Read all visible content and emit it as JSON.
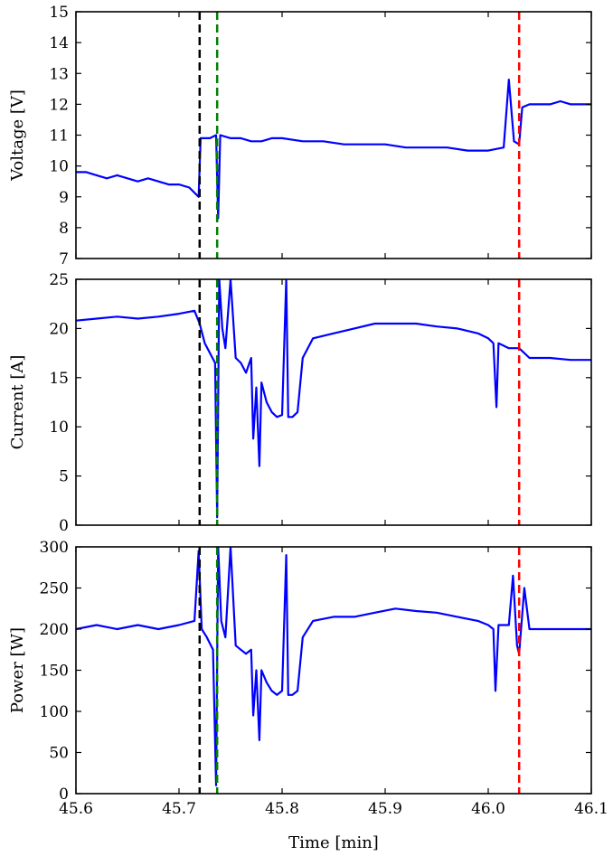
{
  "chart_data": [
    {
      "type": "line",
      "ylabel": "Voltage [V]",
      "xlim": [
        45.6,
        46.1
      ],
      "ylim": [
        7,
        15
      ],
      "yticks": [
        7,
        8,
        9,
        10,
        11,
        12,
        13,
        14,
        15
      ],
      "xtick_labels_visible": false,
      "series": [
        {
          "color": "#0000ff",
          "x": [
            45.6,
            45.61,
            45.62,
            45.63,
            45.64,
            45.65,
            45.66,
            45.67,
            45.68,
            45.69,
            45.7,
            45.71,
            45.719,
            45.721,
            45.73,
            45.736,
            45.738,
            45.74,
            45.75,
            45.76,
            45.77,
            45.78,
            45.79,
            45.8,
            45.82,
            45.84,
            45.86,
            45.88,
            45.9,
            45.92,
            45.94,
            45.96,
            45.98,
            46.0,
            46.015,
            46.02,
            46.025,
            46.03,
            46.033,
            46.04,
            46.05,
            46.06,
            46.07,
            46.08,
            46.09,
            46.1
          ],
          "y": [
            9.8,
            9.8,
            9.7,
            9.6,
            9.7,
            9.6,
            9.5,
            9.6,
            9.5,
            9.4,
            9.4,
            9.3,
            9.0,
            10.9,
            10.9,
            11.0,
            8.3,
            11.0,
            10.9,
            10.9,
            10.8,
            10.8,
            10.9,
            10.9,
            10.8,
            10.8,
            10.7,
            10.7,
            10.7,
            10.6,
            10.6,
            10.6,
            10.5,
            10.5,
            10.6,
            12.8,
            10.8,
            10.7,
            11.9,
            12.0,
            12.0,
            12.0,
            12.1,
            12.0,
            12.0,
            12.0
          ]
        }
      ],
      "vlines": [
        {
          "x": 45.72,
          "color": "#000000",
          "style": "dashed"
        },
        {
          "x": 45.737,
          "color": "#008000",
          "style": "dashed"
        },
        {
          "x": 46.03,
          "color": "#ff0000",
          "style": "dashed"
        }
      ],
      "grid": false
    },
    {
      "type": "line",
      "ylabel": "Current [A]",
      "xlim": [
        45.6,
        46.1
      ],
      "ylim": [
        0,
        25
      ],
      "yticks": [
        0,
        5,
        10,
        15,
        20,
        25
      ],
      "xtick_labels_visible": false,
      "series": [
        {
          "color": "#0000ff",
          "x": [
            45.6,
            45.62,
            45.64,
            45.66,
            45.68,
            45.7,
            45.715,
            45.72,
            45.725,
            45.73,
            45.735,
            45.737,
            45.739,
            45.742,
            45.745,
            45.75,
            45.755,
            45.76,
            45.765,
            45.77,
            45.772,
            45.775,
            45.778,
            45.78,
            45.785,
            45.79,
            45.795,
            45.8,
            45.804,
            45.806,
            45.81,
            45.815,
            45.82,
            45.83,
            45.85,
            45.87,
            45.89,
            45.91,
            45.93,
            45.95,
            45.97,
            45.99,
            46.0,
            46.005,
            46.008,
            46.01,
            46.02,
            46.03,
            46.035,
            46.04,
            46.06,
            46.08,
            46.1
          ],
          "y": [
            20.8,
            21.0,
            21.2,
            21.0,
            21.2,
            21.5,
            21.8,
            20.5,
            18.5,
            17.5,
            16.5,
            0.8,
            25.0,
            20.0,
            18.0,
            25.0,
            17.0,
            16.5,
            15.5,
            17.0,
            8.8,
            14.0,
            6.0,
            14.5,
            12.5,
            11.5,
            11.0,
            11.2,
            25.0,
            11.0,
            11.0,
            11.5,
            17.0,
            19.0,
            19.5,
            20.0,
            20.5,
            20.5,
            20.5,
            20.2,
            20.0,
            19.5,
            19.0,
            18.5,
            12.0,
            18.5,
            18.0,
            18.0,
            17.5,
            17.0,
            17.0,
            16.8,
            16.8
          ]
        }
      ],
      "vlines": [
        {
          "x": 45.72,
          "color": "#000000",
          "style": "dashed"
        },
        {
          "x": 45.737,
          "color": "#008000",
          "style": "dashed"
        },
        {
          "x": 46.03,
          "color": "#ff0000",
          "style": "dashed"
        }
      ],
      "grid": false
    },
    {
      "type": "line",
      "xlabel": "Time [min]",
      "ylabel": "Power [W]",
      "xlim": [
        45.6,
        46.1
      ],
      "ylim": [
        0,
        300
      ],
      "xticks": [
        45.6,
        45.7,
        45.8,
        45.9,
        46.0,
        46.1
      ],
      "yticks": [
        0,
        50,
        100,
        150,
        200,
        250,
        300
      ],
      "series": [
        {
          "color": "#0000ff",
          "x": [
            45.6,
            45.62,
            45.64,
            45.66,
            45.68,
            45.7,
            45.715,
            45.719,
            45.722,
            45.727,
            45.733,
            45.736,
            45.738,
            45.741,
            45.745,
            45.75,
            45.755,
            45.76,
            45.765,
            45.77,
            45.772,
            45.775,
            45.778,
            45.78,
            45.785,
            45.79,
            45.795,
            45.8,
            45.804,
            45.806,
            45.81,
            45.815,
            45.82,
            45.83,
            45.85,
            45.87,
            45.89,
            45.91,
            45.93,
            45.95,
            45.97,
            45.99,
            46.0,
            46.005,
            46.007,
            46.01,
            46.02,
            46.024,
            46.028,
            46.03,
            46.035,
            46.04,
            46.06,
            46.08,
            46.1
          ],
          "y": [
            200,
            205,
            200,
            205,
            200,
            205,
            210,
            295,
            200,
            190,
            175,
            10,
            300,
            210,
            190,
            300,
            180,
            175,
            170,
            175,
            95,
            150,
            65,
            150,
            135,
            125,
            120,
            125,
            290,
            120,
            120,
            125,
            190,
            210,
            215,
            215,
            220,
            225,
            222,
            220,
            215,
            210,
            205,
            200,
            125,
            205,
            205,
            265,
            180,
            170,
            250,
            200,
            200,
            200,
            200
          ]
        }
      ],
      "vlines": [
        {
          "x": 45.72,
          "color": "#000000",
          "style": "dashed"
        },
        {
          "x": 45.737,
          "color": "#008000",
          "style": "dashed"
        },
        {
          "x": 46.03,
          "color": "#ff0000",
          "style": "dashed"
        }
      ],
      "grid": false
    }
  ]
}
